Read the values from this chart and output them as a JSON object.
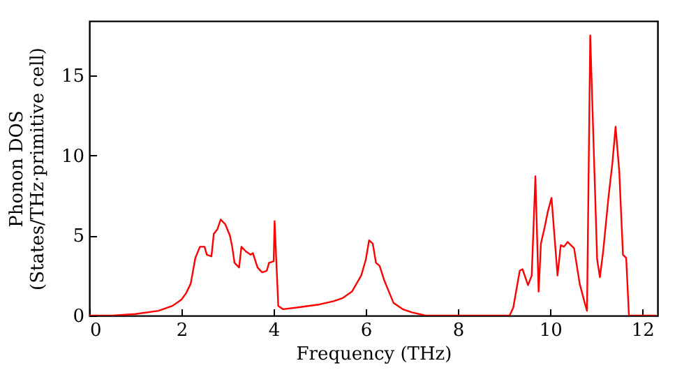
{
  "chart_data": {
    "type": "line",
    "xlabel": "Frequency (THz)",
    "ylabel": "Phonon DOS\n(States/THz·primitive cell)",
    "x": [
      0,
      0.5,
      1,
      1.5,
      1.8,
      2.0,
      2.1,
      2.2,
      2.3,
      2.4,
      2.5,
      2.55,
      2.65,
      2.7,
      2.78,
      2.85,
      2.95,
      3.05,
      3.1,
      3.15,
      3.25,
      3.3,
      3.4,
      3.5,
      3.55,
      3.65,
      3.75,
      3.85,
      3.9,
      4.0,
      4.02,
      4.1,
      4.2,
      4.5,
      5.0,
      5.3,
      5.5,
      5.7,
      5.9,
      6.0,
      6.07,
      6.15,
      6.22,
      6.3,
      6.4,
      6.5,
      6.6,
      6.8,
      7.0,
      7.3,
      7.6,
      9.12,
      9.2,
      9.34,
      9.4,
      9.52,
      9.6,
      9.68,
      9.75,
      9.8,
      9.88,
      9.95,
      10.03,
      10.16,
      10.23,
      10.3,
      10.38,
      10.45,
      10.52,
      10.64,
      10.75,
      10.8,
      10.87,
      10.95,
      11.02,
      11.08,
      11.15,
      11.27,
      11.35,
      11.42,
      11.5,
      11.58,
      11.65,
      11.71,
      12.3
    ],
    "series": [
      {
        "color": "#ff0000",
        "values": [
          0,
          0,
          0.1,
          0.3,
          0.6,
          1.0,
          1.4,
          2.0,
          3.6,
          4.3,
          4.3,
          3.8,
          3.7,
          5.1,
          5.4,
          6.0,
          5.7,
          5.0,
          4.3,
          3.3,
          3.0,
          4.3,
          4.0,
          3.8,
          3.9,
          3.0,
          2.7,
          2.8,
          3.3,
          3.4,
          5.9,
          0.6,
          0.4,
          0.5,
          0.7,
          0.9,
          1.1,
          1.5,
          2.5,
          3.5,
          4.7,
          4.5,
          3.3,
          3.1,
          2.2,
          1.5,
          0.8,
          0.4,
          0.2,
          0,
          0,
          0,
          0.5,
          2.8,
          2.9,
          1.9,
          2.5,
          8.7,
          1.5,
          4.5,
          5.5,
          6.5,
          7.35,
          2.5,
          4.4,
          4.3,
          4.6,
          4.4,
          4.2,
          2.0,
          0.8,
          0.3,
          17.5,
          10,
          3.5,
          2.4,
          4.0,
          7.5,
          9.5,
          11.8,
          9.0,
          3.8,
          3.6,
          0,
          0
        ]
      }
    ],
    "xlim": [
      0,
      12.33
    ],
    "xticks": [
      0,
      2,
      4,
      6,
      8,
      10,
      12
    ],
    "ylim": [
      0,
      18.4
    ],
    "yticks": [
      0,
      5,
      10,
      15
    ],
    "grid": false,
    "line_style": "solid"
  }
}
